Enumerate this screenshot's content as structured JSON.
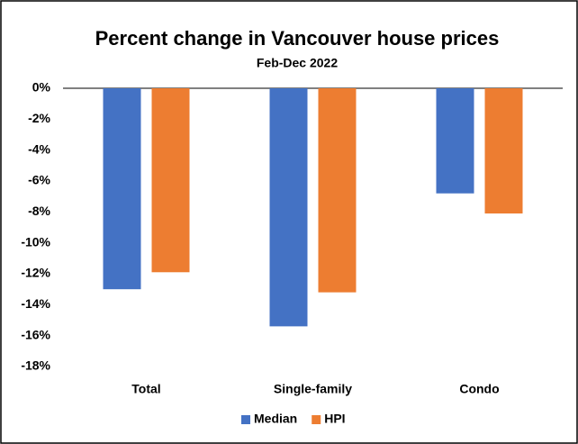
{
  "chart_data": {
    "type": "bar",
    "title": "Percent change in Vancouver house prices",
    "subtitle": "Feb-Dec 2022",
    "categories": [
      "Total",
      "Single-family",
      "Condo"
    ],
    "series": [
      {
        "name": "Median",
        "color": "#4472c4",
        "values": [
          -13.0,
          -15.4,
          -6.8
        ]
      },
      {
        "name": "HPI",
        "color": "#ed7d31",
        "values": [
          -11.9,
          -13.2,
          -8.1
        ]
      }
    ],
    "ylim": [
      -18,
      0
    ],
    "yticks": [
      {
        "value": 0,
        "label": "0%"
      },
      {
        "value": -2,
        "label": "-2%"
      },
      {
        "value": -4,
        "label": "-4%"
      },
      {
        "value": -6,
        "label": "-6%"
      },
      {
        "value": -8,
        "label": "-8%"
      },
      {
        "value": -10,
        "label": "-10%"
      },
      {
        "value": -12,
        "label": "-12%"
      },
      {
        "value": -14,
        "label": "-14%"
      },
      {
        "value": -16,
        "label": "-16%"
      },
      {
        "value": -18,
        "label": "-18%"
      }
    ],
    "grid": false,
    "legend": "bottom"
  }
}
